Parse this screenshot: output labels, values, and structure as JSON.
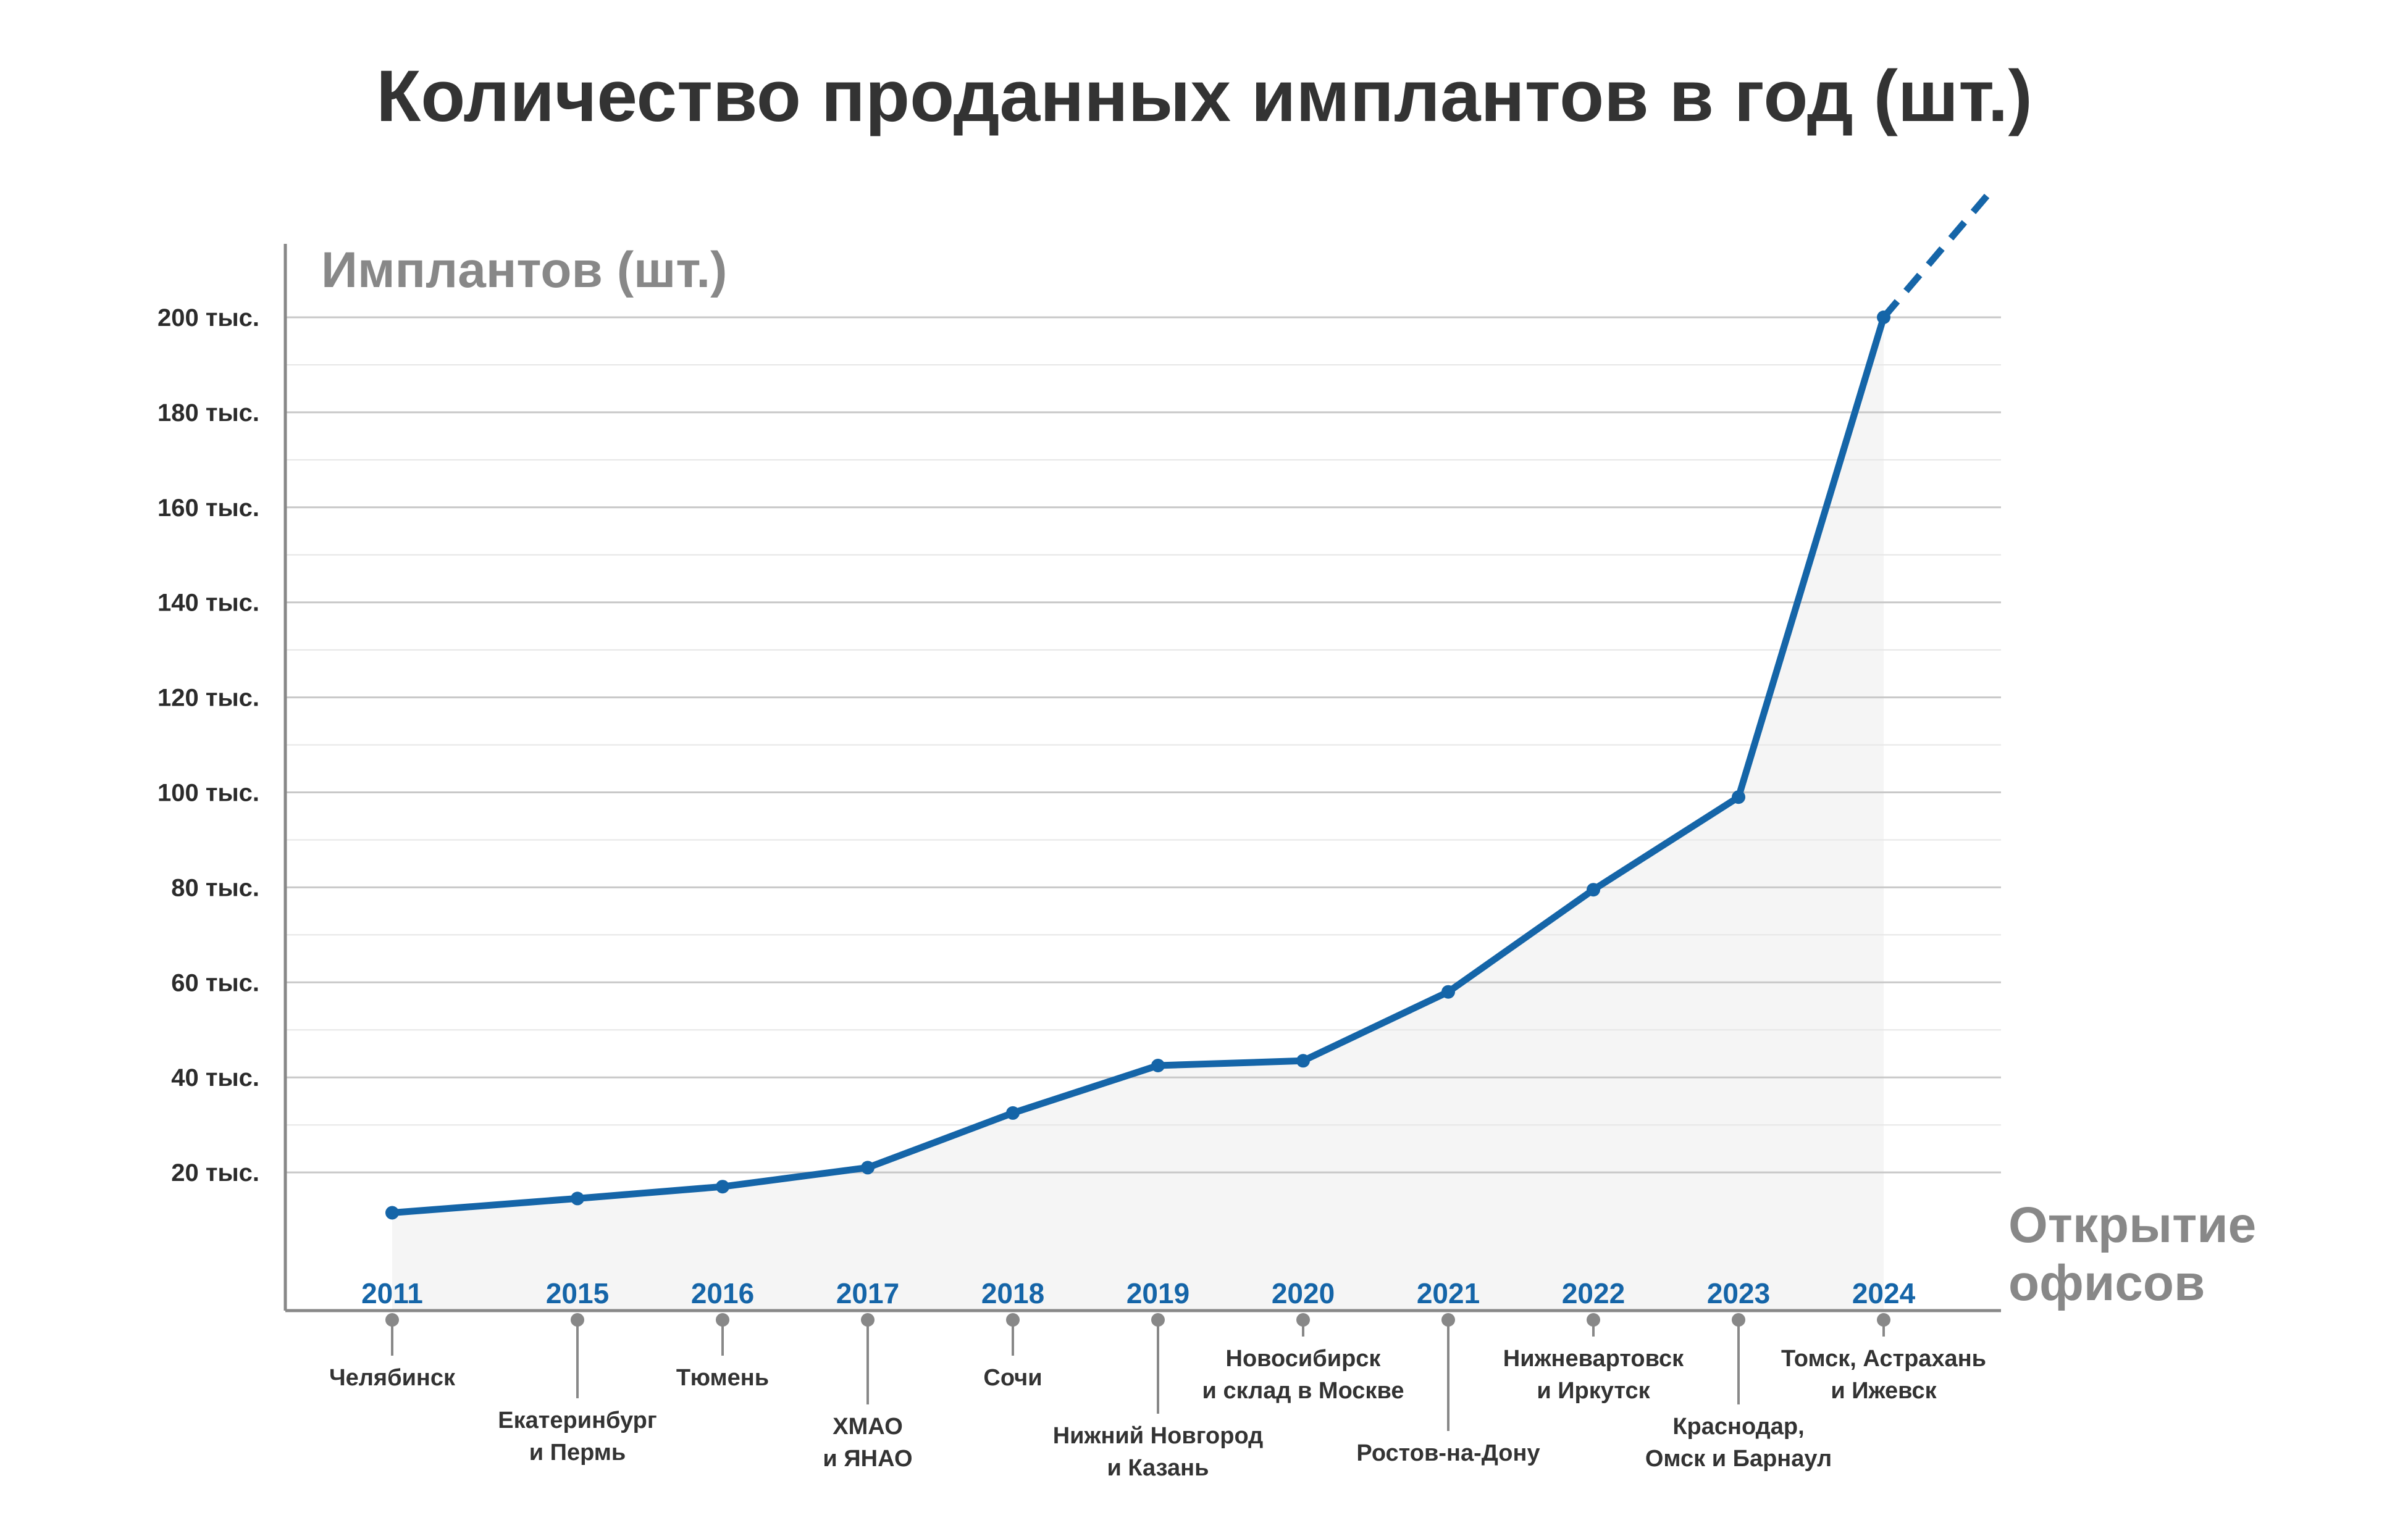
{
  "chart_data": {
    "type": "line",
    "title": "Количество проданных имплантов в год (шт.)",
    "ylabel": "Имплантов (шт.)",
    "xlabel": "Открытие офисов",
    "ylim": [
      0,
      210000
    ],
    "y_ticks": [
      20000,
      40000,
      60000,
      80000,
      100000,
      120000,
      140000,
      160000,
      180000,
      200000
    ],
    "y_tick_labels": [
      "20 тыс.",
      "40 тыс.",
      "60 тыс.",
      "80 тыс.",
      "100 тыс.",
      "120 тыс.",
      "140 тыс.",
      "160 тыс.",
      "180 тыс.",
      "200 тыс."
    ],
    "minor_gridlines": true,
    "categories": [
      "2011",
      "2015",
      "2016",
      "2017",
      "2018",
      "2019",
      "2020",
      "2021",
      "2022",
      "2023",
      "2024"
    ],
    "series": [
      {
        "name": "Имплантов (шт.)",
        "values": [
          11500,
          14500,
          17000,
          21000,
          32500,
          42500,
          43500,
          58000,
          79500,
          99000,
          200000
        ],
        "projection_to": 226000
      }
    ],
    "offices": [
      [
        "Челябинск"
      ],
      [
        "Екатеринбург",
        "и Пермь"
      ],
      [
        "Тюмень"
      ],
      [
        "ХМАО",
        "и ЯНАО"
      ],
      [
        "Сочи"
      ],
      [
        "Нижний Новгород",
        "и Казань"
      ],
      [
        "Новосибирск",
        "и склад в Москве"
      ],
      [
        "Ростов-на-Дону"
      ],
      [
        "Нижневартовск",
        "и Иркутск"
      ],
      [
        "Краснодар,",
        "Омск и Барнаул"
      ],
      [
        "Томск, Астрахань",
        "и Ижевск"
      ]
    ]
  },
  "colors": {
    "line": "#1565a8",
    "fill": "#f5f5f5",
    "grid": "#c8c8c8",
    "minor_grid": "#e6e6e6",
    "axis": "#888888",
    "tick_text": "#2b2b2b",
    "year_text": "#1565a8"
  }
}
